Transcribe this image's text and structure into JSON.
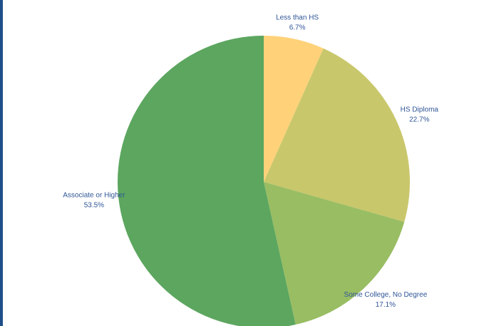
{
  "chart_data": {
    "type": "pie",
    "title": "",
    "start_angle_deg": 0,
    "direction": "clockwise",
    "slices": [
      {
        "label": "Less than HS",
        "value": 6.7,
        "display": "6.7%",
        "color": "#ffd27a"
      },
      {
        "label": "HS Diploma",
        "value": 22.7,
        "display": "22.7%",
        "color": "#c9c76b"
      },
      {
        "label": "Some College, No Degree",
        "value": 17.1,
        "display": "17.1%",
        "color": "#99bd63"
      },
      {
        "label": "Associate or Higher",
        "value": 53.5,
        "display": "53.5%",
        "color": "#5ca65f"
      }
    ],
    "legend": "none",
    "label_color": "#2f5597"
  }
}
